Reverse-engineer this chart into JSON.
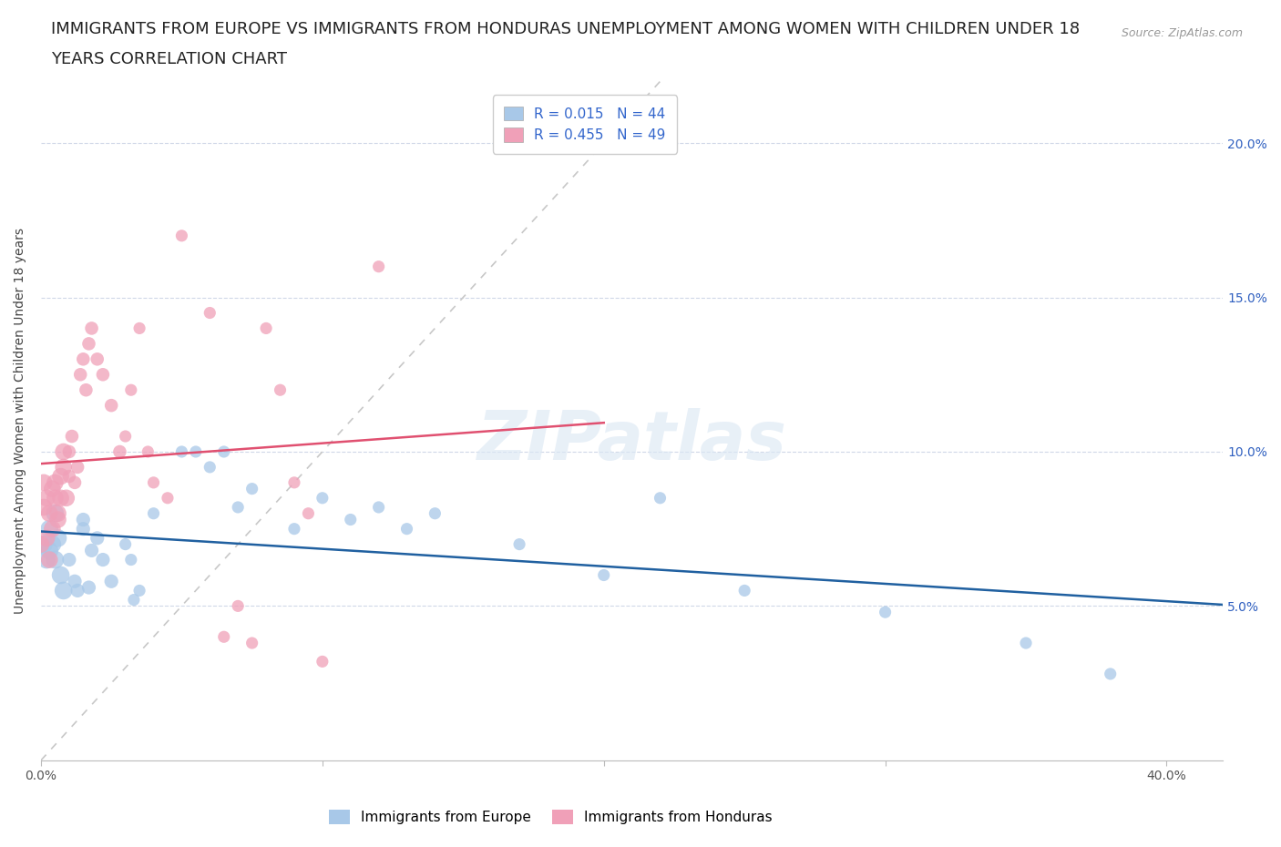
{
  "title_line1": "IMMIGRANTS FROM EUROPE VS IMMIGRANTS FROM HONDURAS UNEMPLOYMENT AMONG WOMEN WITH CHILDREN UNDER 18",
  "title_line2": "YEARS CORRELATION CHART",
  "source": "Source: ZipAtlas.com",
  "ylabel": "Unemployment Among Women with Children Under 18 years",
  "xlim": [
    0.0,
    0.42
  ],
  "ylim": [
    0.0,
    0.22
  ],
  "legend_europe_R": "0.015",
  "legend_europe_N": "44",
  "legend_honduras_R": "0.455",
  "legend_honduras_N": "49",
  "color_europe": "#a8c8e8",
  "color_honduras": "#f0a0b8",
  "color_europe_line": "#2060a0",
  "color_honduras_line": "#e05070",
  "color_diagonal": "#c8c8c8",
  "watermark": "ZIPatlas",
  "europe_x": [
    0.001,
    0.002,
    0.003,
    0.003,
    0.004,
    0.005,
    0.005,
    0.006,
    0.007,
    0.008,
    0.01,
    0.012,
    0.013,
    0.015,
    0.015,
    0.017,
    0.018,
    0.02,
    0.022,
    0.025,
    0.03,
    0.032,
    0.033,
    0.035,
    0.04,
    0.05,
    0.055,
    0.06,
    0.065,
    0.07,
    0.075,
    0.09,
    0.1,
    0.11,
    0.12,
    0.13,
    0.14,
    0.17,
    0.2,
    0.22,
    0.25,
    0.3,
    0.35,
    0.38
  ],
  "europe_y": [
    0.07,
    0.065,
    0.075,
    0.068,
    0.07,
    0.08,
    0.065,
    0.072,
    0.06,
    0.055,
    0.065,
    0.058,
    0.055,
    0.075,
    0.078,
    0.056,
    0.068,
    0.072,
    0.065,
    0.058,
    0.07,
    0.065,
    0.052,
    0.055,
    0.08,
    0.1,
    0.1,
    0.095,
    0.1,
    0.082,
    0.088,
    0.075,
    0.085,
    0.078,
    0.082,
    0.075,
    0.08,
    0.07,
    0.06,
    0.085,
    0.055,
    0.048,
    0.038,
    0.028
  ],
  "honduras_x": [
    0.0,
    0.001,
    0.001,
    0.002,
    0.002,
    0.003,
    0.003,
    0.004,
    0.004,
    0.005,
    0.005,
    0.006,
    0.006,
    0.007,
    0.007,
    0.008,
    0.008,
    0.009,
    0.01,
    0.01,
    0.011,
    0.012,
    0.013,
    0.014,
    0.015,
    0.016,
    0.017,
    0.018,
    0.02,
    0.022,
    0.025,
    0.028,
    0.03,
    0.032,
    0.035,
    0.038,
    0.04,
    0.045,
    0.05,
    0.06,
    0.065,
    0.07,
    0.075,
    0.08,
    0.085,
    0.09,
    0.095,
    0.1,
    0.12
  ],
  "honduras_y": [
    0.07,
    0.082,
    0.09,
    0.085,
    0.072,
    0.065,
    0.08,
    0.075,
    0.088,
    0.085,
    0.09,
    0.078,
    0.08,
    0.092,
    0.085,
    0.1,
    0.095,
    0.085,
    0.092,
    0.1,
    0.105,
    0.09,
    0.095,
    0.125,
    0.13,
    0.12,
    0.135,
    0.14,
    0.13,
    0.125,
    0.115,
    0.1,
    0.105,
    0.12,
    0.14,
    0.1,
    0.09,
    0.085,
    0.17,
    0.145,
    0.04,
    0.05,
    0.038,
    0.14,
    0.12,
    0.09,
    0.08,
    0.032,
    0.16
  ],
  "background_color": "#ffffff",
  "grid_color": "#d0d8e8",
  "title_fontsize": 13,
  "axis_label_fontsize": 10,
  "tick_fontsize": 10,
  "legend_fontsize": 11
}
